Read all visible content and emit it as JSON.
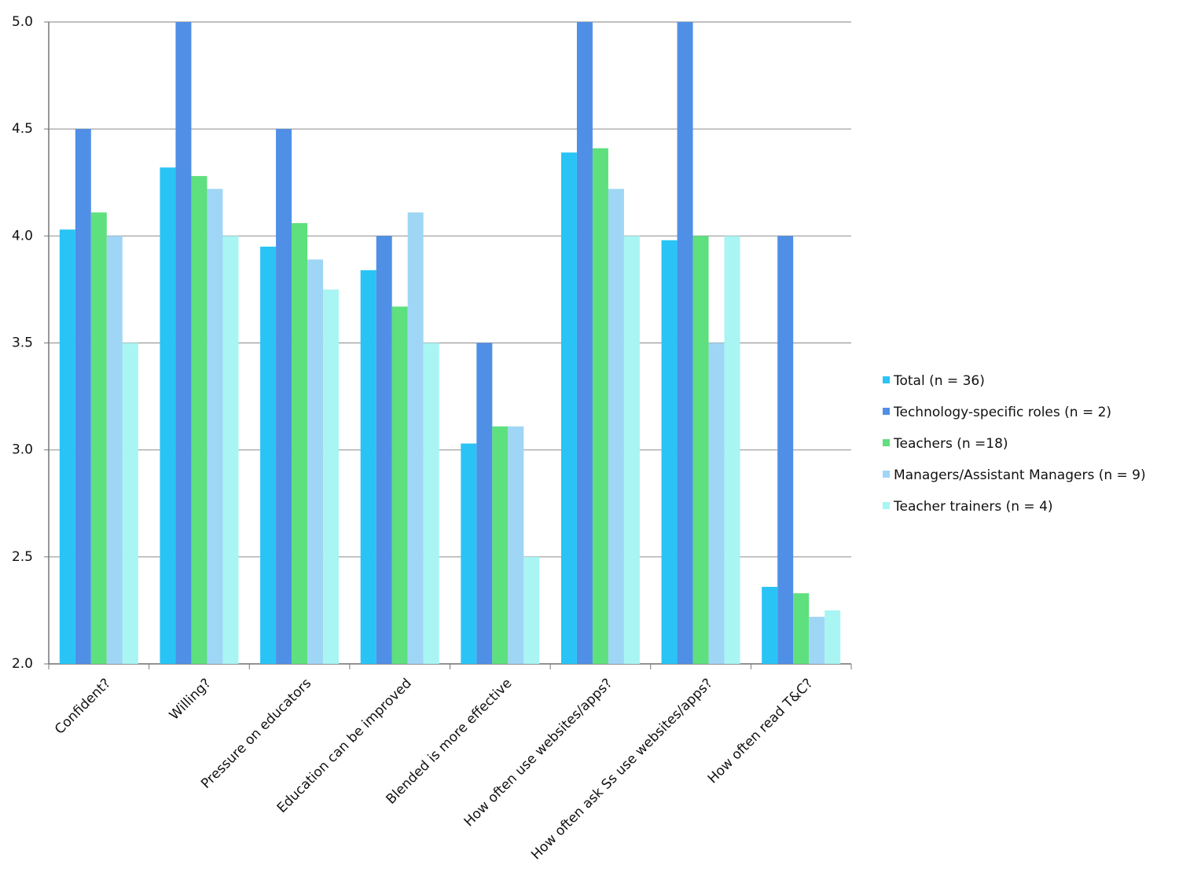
{
  "chart_data": {
    "type": "bar",
    "categories": [
      "Confident?",
      "Willing?",
      "Pressure on educators",
      "Education can be improved",
      "Blended is more effective",
      "How often use websites/apps?",
      "How often ask Ss use websites/apps?",
      "How often read T&C?"
    ],
    "series": [
      {
        "name": "Total (n = 36)",
        "color": "#29c4f5",
        "values": [
          4.03,
          4.32,
          3.95,
          3.84,
          3.03,
          4.39,
          3.98,
          2.36
        ]
      },
      {
        "name": "Technology-specific roles (n = 2)",
        "color": "#4f8fe6",
        "values": [
          4.5,
          5.0,
          4.5,
          4.0,
          3.5,
          5.0,
          5.0,
          4.0
        ]
      },
      {
        "name": "Teachers (n =18)",
        "color": "#5ee07e",
        "values": [
          4.11,
          4.28,
          4.06,
          3.67,
          3.11,
          4.41,
          4.0,
          2.33
        ]
      },
      {
        "name": "Managers/Assistant Managers (n = 9)",
        "color": "#9fd6f5",
        "values": [
          4.0,
          4.22,
          3.89,
          4.11,
          3.11,
          4.22,
          3.5,
          2.22
        ]
      },
      {
        "name": "Teacher trainers (n = 4)",
        "color": "#a8f5f3",
        "values": [
          3.5,
          4.0,
          3.75,
          3.5,
          2.5,
          4.0,
          4.0,
          2.25
        ]
      }
    ],
    "ylim": [
      2.0,
      5.0
    ],
    "yticks": [
      {
        "value": 2,
        "label": "2.0"
      },
      {
        "value": 2.5,
        "label": "2.5"
      },
      {
        "value": 3,
        "label": "3.0"
      },
      {
        "value": 3.5,
        "label": "3.5"
      },
      {
        "value": 4,
        "label": "4.0"
      },
      {
        "value": 4.5,
        "label": "4.5"
      },
      {
        "value": 5,
        "label": "5.0"
      }
    ],
    "grid": true,
    "legend": "right"
  }
}
